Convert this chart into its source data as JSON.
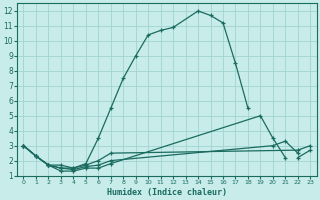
{
  "xlabel": "Humidex (Indice chaleur)",
  "bg_color": "#c8ecea",
  "grid_color": "#a0d4d0",
  "line_color": "#1a6b60",
  "xlim": [
    -0.5,
    23.5
  ],
  "ylim": [
    1,
    12.5
  ],
  "xticks": [
    0,
    1,
    2,
    3,
    4,
    5,
    6,
    7,
    8,
    9,
    10,
    11,
    12,
    13,
    14,
    15,
    16,
    17,
    18,
    19,
    20,
    21,
    22,
    23
  ],
  "yticks": [
    1,
    2,
    3,
    4,
    5,
    6,
    7,
    8,
    9,
    10,
    11,
    12
  ],
  "main_x": [
    0,
    1,
    2,
    3,
    4,
    5,
    6,
    7,
    8,
    9,
    10,
    11,
    12,
    14,
    15,
    16,
    17,
    18
  ],
  "main_y": [
    3.0,
    2.3,
    1.7,
    1.7,
    1.5,
    1.8,
    3.5,
    5.5,
    7.5,
    9.0,
    10.4,
    10.7,
    10.9,
    12.0,
    11.7,
    11.2,
    8.5,
    5.5
  ],
  "line2_x": [
    0,
    1,
    2,
    3,
    4,
    5,
    6,
    7,
    19,
    20,
    21
  ],
  "line2_y": [
    3.0,
    2.3,
    1.7,
    1.3,
    1.3,
    1.5,
    1.5,
    1.8,
    5.0,
    3.5,
    2.2
  ],
  "line3_x": [
    0,
    1,
    2,
    3,
    4,
    5,
    6,
    7,
    20,
    21,
    22
  ],
  "line3_y": [
    3.0,
    2.3,
    1.7,
    1.5,
    1.4,
    1.6,
    1.7,
    2.0,
    3.0,
    3.3,
    2.5
  ],
  "line4_x": [
    0,
    1,
    2,
    3,
    4,
    5,
    6,
    7,
    22,
    23
  ],
  "line4_y": [
    3.0,
    2.3,
    1.7,
    1.5,
    1.5,
    1.7,
    2.0,
    2.5,
    2.7,
    3.0
  ],
  "line5_x": [
    22,
    23
  ],
  "line5_y": [
    2.2,
    2.7
  ]
}
